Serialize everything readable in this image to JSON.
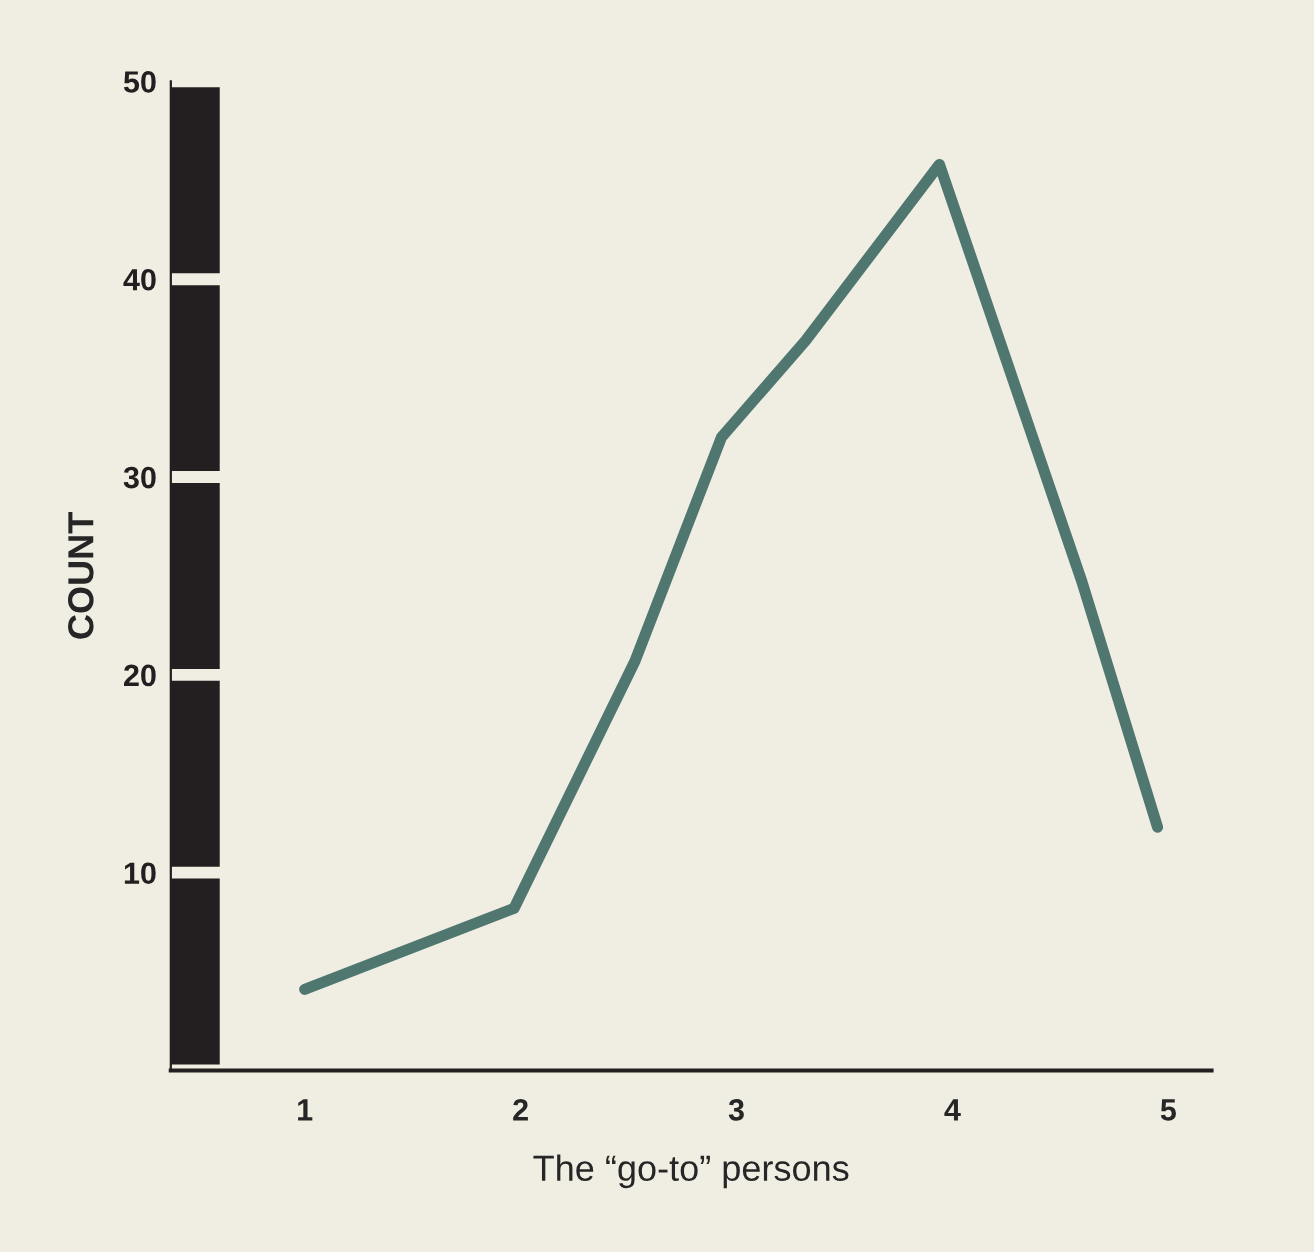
{
  "chart_data": {
    "type": "line",
    "xlabel": "The “go-to” persons",
    "ylabel": "COUNT",
    "x": [
      1,
      1.97,
      2.53,
      2.93,
      3.32,
      3.94,
      4.6,
      4.95
    ],
    "series": [
      {
        "color": "#4f7770",
        "values": [
          4.1,
          8.2,
          20.7,
          32.0,
          36.9,
          45.8,
          24.7,
          12.3
        ]
      }
    ],
    "xlim": [
      0.38,
      5.2
    ],
    "xticks": [
      1,
      2,
      3,
      4,
      5
    ],
    "ylim": [
      0,
      50
    ],
    "yticks": [
      10,
      20,
      30,
      40,
      50
    ],
    "grid": false,
    "legend": false,
    "marker": "none",
    "line_style": "solid"
  }
}
